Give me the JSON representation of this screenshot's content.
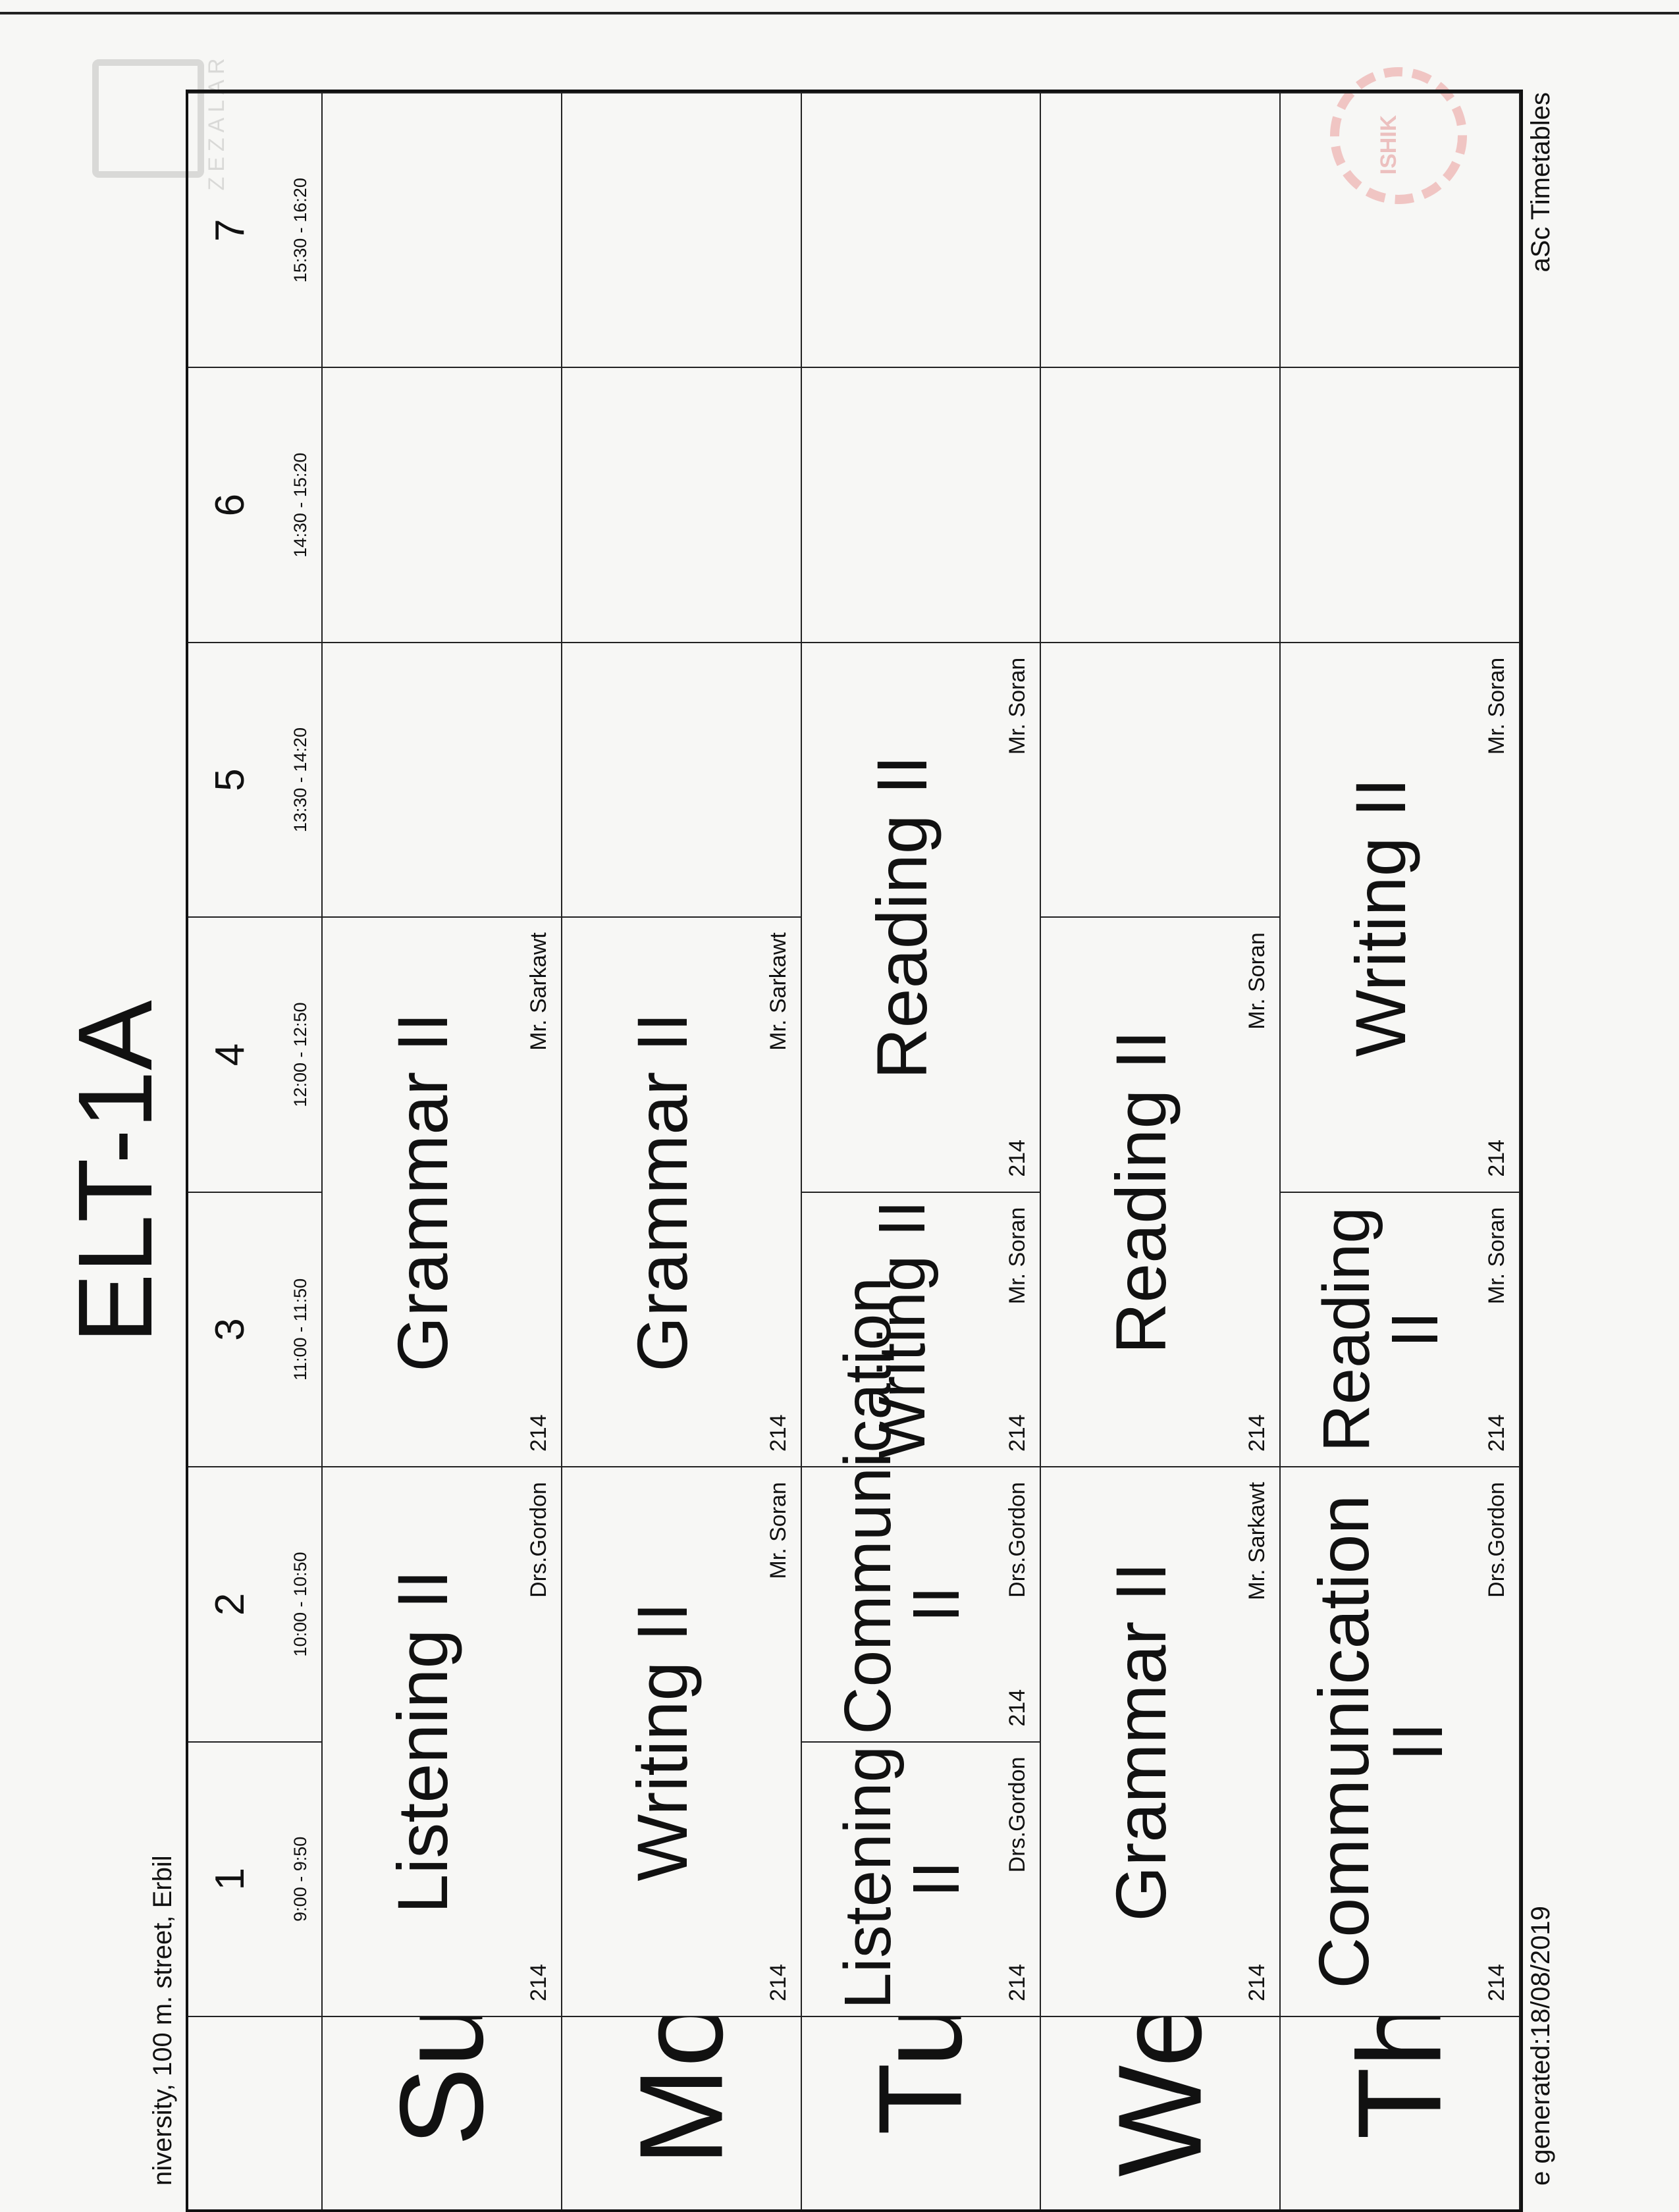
{
  "title": "ELT-1A",
  "address": "niversity, 100 m. street, Erbil",
  "footer": {
    "generated": "e generated:18/08/2019",
    "software": "aSc Timetables"
  },
  "logos": {
    "left": "ZEZALAR",
    "right": "ISHIK"
  },
  "periods": [
    {
      "num": "1",
      "time": "9:00 - 9:50"
    },
    {
      "num": "2",
      "time": "10:00 - 10:50"
    },
    {
      "num": "3",
      "time": "11:00 - 11:50"
    },
    {
      "num": "4",
      "time": "12:00 - 12:50"
    },
    {
      "num": "5",
      "time": "13:30 - 14:20"
    },
    {
      "num": "6",
      "time": "14:30 - 15:20"
    },
    {
      "num": "7",
      "time": "15:30 - 16:20"
    }
  ],
  "days": [
    {
      "label": "Su",
      "lessons": [
        {
          "start": 1,
          "span": 2,
          "subject": "Listening II",
          "room": "214",
          "teacher": "Drs.Gordon"
        },
        {
          "start": 3,
          "span": 2,
          "subject": "Grammar II",
          "room": "214",
          "teacher": "Mr. Sarkawt"
        }
      ]
    },
    {
      "label": "Mo",
      "lessons": [
        {
          "start": 1,
          "span": 2,
          "subject": "Writing II",
          "room": "214",
          "teacher": "Mr. Soran"
        },
        {
          "start": 3,
          "span": 2,
          "subject": "Grammar II",
          "room": "214",
          "teacher": "Mr. Sarkawt"
        }
      ]
    },
    {
      "label": "Tu",
      "lessons": [
        {
          "start": 1,
          "span": 1,
          "subject": "Listening II",
          "room": "214",
          "teacher": "Drs.Gordon"
        },
        {
          "start": 2,
          "span": 1,
          "subject": "Communication II",
          "room": "214",
          "teacher": "Drs.Gordon"
        },
        {
          "start": 3,
          "span": 1,
          "subject": "Writing II",
          "room": "214",
          "teacher": "Mr. Soran"
        },
        {
          "start": 4,
          "span": 2,
          "subject": "Reading II",
          "room": "214",
          "teacher": "Mr. Soran"
        }
      ]
    },
    {
      "label": "We",
      "lessons": [
        {
          "start": 1,
          "span": 2,
          "subject": "Grammar II",
          "room": "214",
          "teacher": "Mr. Sarkawt"
        },
        {
          "start": 3,
          "span": 2,
          "subject": "Reading II",
          "room": "214",
          "teacher": "Mr. Soran"
        }
      ]
    },
    {
      "label": "Th",
      "lessons": [
        {
          "start": 1,
          "span": 2,
          "subject": "Communication II",
          "room": "214",
          "teacher": "Drs.Gordon"
        },
        {
          "start": 3,
          "span": 1,
          "subject": "Reading II",
          "room": "214",
          "teacher": "Mr. Soran"
        },
        {
          "start": 4,
          "span": 2,
          "subject": "Writing II",
          "room": "214",
          "teacher": "Mr. Soran"
        }
      ]
    }
  ]
}
